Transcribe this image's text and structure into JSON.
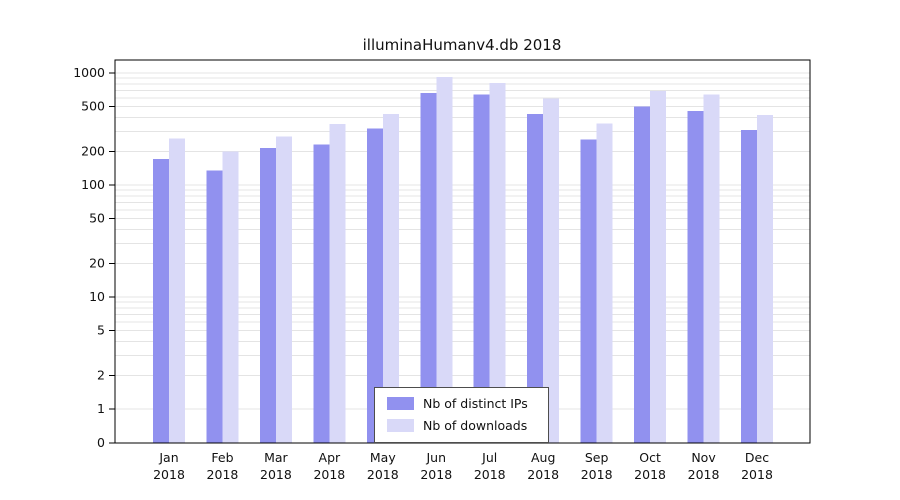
{
  "chart_data": {
    "type": "bar",
    "title": "illuminaHumanv4.db 2018",
    "categories": [
      "Jan",
      "Feb",
      "Mar",
      "Apr",
      "May",
      "Jun",
      "Jul",
      "Aug",
      "Sep",
      "Oct",
      "Nov",
      "Dec"
    ],
    "year_label": "2018",
    "series": [
      {
        "name": "Nb of distinct IPs",
        "color": "#9191ef",
        "values": [
          170,
          135,
          215,
          230,
          320,
          660,
          645,
          430,
          255,
          500,
          460,
          310
        ]
      },
      {
        "name": "Nb of downloads",
        "color": "#d9d9f8",
        "values": [
          260,
          200,
          270,
          350,
          430,
          920,
          815,
          590,
          355,
          690,
          640,
          420
        ]
      }
    ],
    "yscale": "log",
    "yticks": [
      0,
      1,
      2,
      5,
      10,
      20,
      50,
      100,
      200,
      500,
      1000
    ],
    "ylim": [
      0,
      1300
    ],
    "grid": "horizontal-log-minor",
    "legend_position": "bottom-center-inside",
    "colors": {
      "grid": "#e4e4e4",
      "axis": "#000000",
      "text": "#111111"
    }
  }
}
